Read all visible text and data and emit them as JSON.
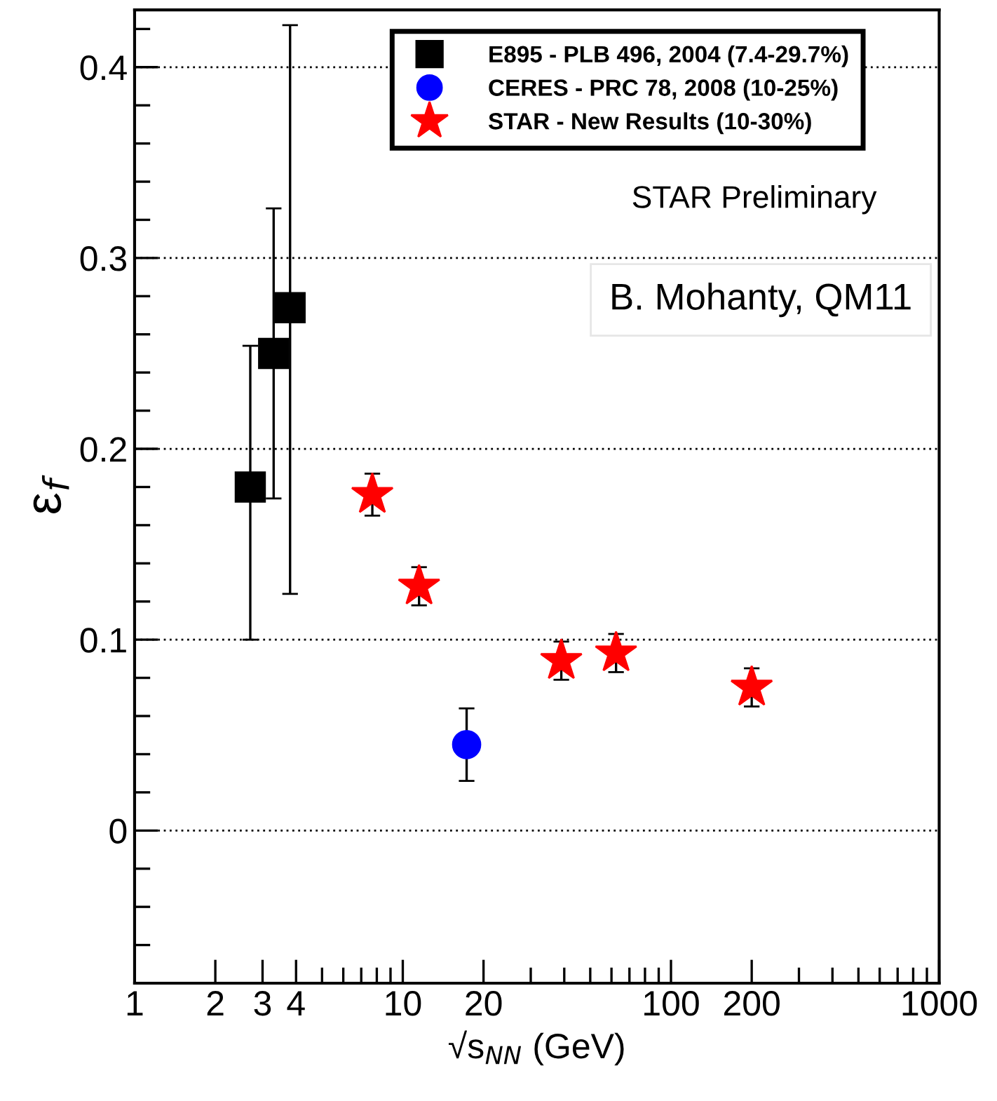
{
  "chart_data": {
    "type": "scatter",
    "xlabel": "√s$_{NN}$ (GeV)",
    "ylabel": "ε$_{f}$",
    "log": "x",
    "xlim": [
      1,
      1000
    ],
    "ylim": [
      -0.08,
      0.43
    ],
    "xticks": [
      1,
      2,
      3,
      4,
      {
        "value": 5,
        "label": null
      },
      {
        "value": 6,
        "label": null
      },
      {
        "value": 7,
        "label": null
      },
      {
        "value": 8,
        "label": null
      },
      {
        "value": 9,
        "label": null
      },
      10,
      20,
      {
        "value": 30,
        "label": null
      },
      {
        "value": 40,
        "label": null
      },
      {
        "value": 50,
        "label": null
      },
      {
        "value": 60,
        "label": null
      },
      {
        "value": 70,
        "label": null
      },
      {
        "value": 80,
        "label": null
      },
      {
        "value": 90,
        "label": null
      },
      100,
      200,
      {
        "value": 300,
        "label": null
      },
      {
        "value": 400,
        "label": null
      },
      {
        "value": 500,
        "label": null
      },
      {
        "value": 600,
        "label": null
      },
      {
        "value": 700,
        "label": null
      },
      {
        "value": 800,
        "label": null
      },
      {
        "value": 900,
        "label": null
      },
      1000
    ],
    "yticks": [
      {
        "value": -0.06,
        "label": null
      },
      {
        "value": -0.04,
        "label": null
      },
      {
        "value": -0.02,
        "label": null
      },
      0,
      {
        "value": 0.02,
        "label": null
      },
      {
        "value": 0.04,
        "label": null
      },
      {
        "value": 0.06,
        "label": null
      },
      {
        "value": 0.08,
        "label": null
      },
      0.1,
      {
        "value": 0.12,
        "label": null
      },
      {
        "value": 0.14,
        "label": null
      },
      {
        "value": 0.16,
        "label": null
      },
      {
        "value": 0.18,
        "label": null
      },
      0.2,
      {
        "value": 0.22,
        "label": null
      },
      {
        "value": 0.24,
        "label": null
      },
      {
        "value": 0.26,
        "label": null
      },
      {
        "value": 0.28,
        "label": null
      },
      0.3,
      {
        "value": 0.32,
        "label": null
      },
      {
        "value": 0.34,
        "label": null
      },
      {
        "value": 0.36,
        "label": null
      },
      {
        "value": 0.38,
        "label": null
      },
      0.4,
      {
        "value": 0.42,
        "label": null
      }
    ],
    "grid": "y",
    "legend": "top right",
    "series": [
      {
        "name": "E895 - PLB 496, 2004 (7.4-29.7%)",
        "color": "#000000",
        "marker": "square",
        "x": [
          2.7,
          3.3,
          3.8
        ],
        "values": [
          0.18,
          0.25,
          0.274
        ],
        "errors": [
          [
            0.1,
            0.254
          ],
          [
            0.174,
            0.326
          ],
          [
            0.124,
            0.422
          ]
        ]
      },
      {
        "name": "CERES - PRC 78, 2008 (10-25%)",
        "color": "#0000ff",
        "marker": "circle",
        "x": [
          17.3
        ],
        "values": [
          0.045
        ],
        "errors": [
          [
            0.026,
            0.064
          ]
        ]
      },
      {
        "name": "STAR - New Results (10-30%)",
        "color": "#ff0000",
        "marker": "star",
        "x": [
          7.7,
          11.5,
          39,
          62.4,
          200
        ],
        "values": [
          0.176,
          0.128,
          0.089,
          0.093,
          0.075
        ],
        "errors": [
          0.011,
          0.01,
          0.01,
          0.01,
          0.01
        ]
      }
    ],
    "annotations": [
      "STAR Preliminary",
      "B. Mohanty, QM11"
    ]
  }
}
